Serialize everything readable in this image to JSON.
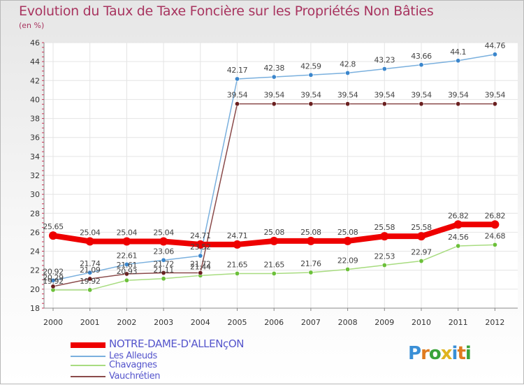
{
  "title": "Evolution du Taux de Taxe Foncière sur les Propriétés Non Bâties",
  "unit_label": "(en %)",
  "logo": {
    "letters": [
      "P",
      "r",
      "o",
      "x",
      "i",
      "t",
      "i"
    ],
    "colors": [
      "#3a8fd6",
      "#e07b1f",
      "#3aa33a",
      "#e0b41f",
      "#3a8fd6",
      "#e07b1f",
      "#3aa33a"
    ]
  },
  "chart_data": {
    "type": "line",
    "title": "Evolution du Taux de Taxe Foncière sur les Propriétés Non Bâties",
    "ylabel": "(en %)",
    "xlabel": "",
    "ylim": [
      18,
      46
    ],
    "yticks": [
      18,
      20,
      22,
      24,
      26,
      28,
      30,
      32,
      34,
      36,
      38,
      40,
      42,
      44,
      46
    ],
    "categories": [
      "2000",
      "2001",
      "2002",
      "2003",
      "2004",
      "2005",
      "2006",
      "2007",
      "2008",
      "2009",
      "2010",
      "2011",
      "2012"
    ],
    "series": [
      {
        "name": "NOTRE-DAME-D'ALLENçON",
        "color": "#ee0000",
        "marker": "#ee0000",
        "values": [
          25.65,
          25.04,
          25.04,
          25.04,
          24.71,
          24.71,
          25.08,
          25.08,
          25.08,
          25.58,
          25.58,
          26.82,
          26.82
        ],
        "labels": [
          "25.65",
          "25.04",
          "25.04",
          "25.04",
          "24.71",
          "24.71",
          "25.08",
          "25.08",
          "25.08",
          "25.58",
          "25.58",
          "26.82",
          "26.82"
        ]
      },
      {
        "name": "Les Alleuds",
        "color": "#7ab0de",
        "marker": "#3b86cc",
        "values": [
          20.92,
          21.74,
          22.61,
          23.06,
          23.52,
          42.17,
          42.38,
          42.59,
          42.8,
          43.23,
          43.66,
          44.1,
          44.76
        ],
        "labels": [
          "20.92",
          "21.74",
          "22.61",
          "23.06",
          "23.52",
          "42.17",
          "42.38",
          "42.59",
          "42.8",
          "43.23",
          "43.66",
          "44.1",
          "44.76"
        ]
      },
      {
        "name": "Chavagnes",
        "color": "#a8dc80",
        "marker": "#6cc03a",
        "values": [
          19.92,
          19.92,
          20.93,
          21.11,
          21.44,
          21.65,
          21.65,
          21.76,
          22.09,
          22.53,
          22.97,
          24.56,
          24.68
        ],
        "labels": [
          "19.92",
          "19.92",
          "20.93",
          "21.11",
          "21.44",
          "21.65",
          "21.65",
          "21.76",
          "22.09",
          "22.53",
          "22.97",
          "24.56",
          "24.68"
        ]
      },
      {
        "name": "Vauchrétien",
        "color": "#8a4a4a",
        "marker": "#6a1f1f",
        "values": [
          20.29,
          21.09,
          21.61,
          21.72,
          21.72,
          39.54,
          39.54,
          39.54,
          39.54,
          39.54,
          39.54,
          39.54,
          39.54
        ],
        "labels": [
          "20.29",
          "21.09",
          "21.61",
          "21.72",
          "21.72",
          "39.54",
          "39.54",
          "39.54",
          "39.54",
          "39.54",
          "39.54",
          "39.54",
          "39.54"
        ]
      }
    ],
    "legend": "bottom-left"
  }
}
